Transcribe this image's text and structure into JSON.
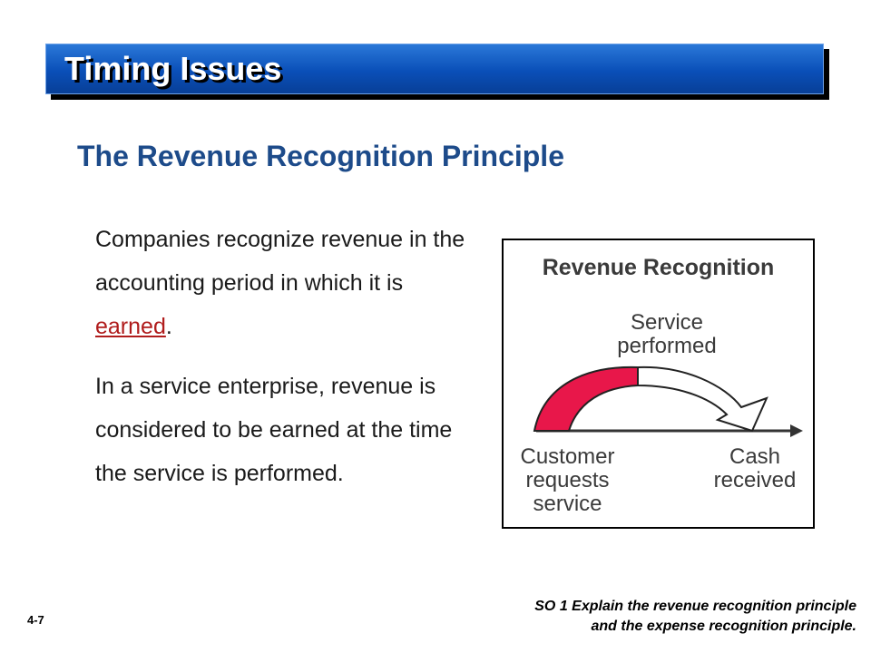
{
  "slide": {
    "title": "Timing Issues",
    "subtitle": "The Revenue Recognition Principle",
    "paragraph1": {
      "before": "Companies recognize revenue in the accounting period in which it is ",
      "highlight": "earned",
      "after": "."
    },
    "paragraph2": "In a service enterprise, revenue is considered to be earned at the time the service is performed.",
    "slide_number": "4-7",
    "study_objective": {
      "line1": "SO 1  Explain the revenue recognition principle",
      "line2": "and the expense recognition principle."
    }
  },
  "figure": {
    "title": "Revenue Recognition",
    "label_service_line1": "Service",
    "label_service_line2": "performed",
    "label_customer_line1": "Customer",
    "label_customer_line2": "requests",
    "label_customer_line3": "service",
    "label_cash_line1": "Cash",
    "label_cash_line2": "received"
  },
  "colors": {
    "title_bar": "#0a4fb8",
    "subtitle": "#1d4b8a",
    "highlight": "#b01c1c",
    "arrow_fill": "#e8174a"
  }
}
